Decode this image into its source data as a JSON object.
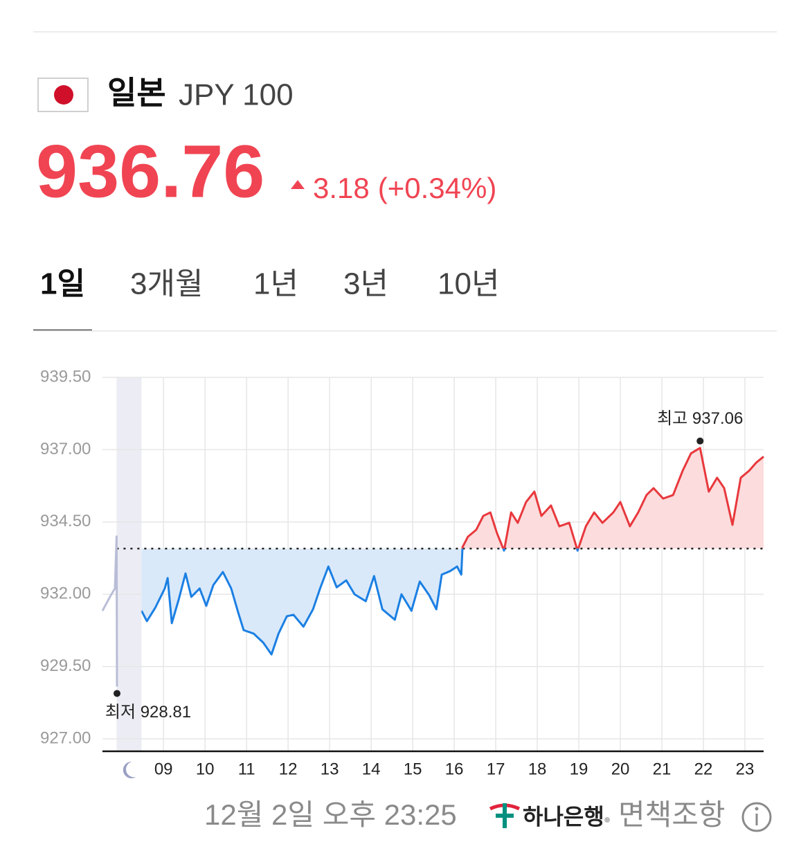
{
  "header": {
    "country": "일본",
    "currency": "JPY 100",
    "price": "936.76",
    "change": "3.18",
    "change_percent": "(+0.34%)"
  },
  "tabs": {
    "items": [
      "1일",
      "3개월",
      "1년",
      "3년",
      "10년"
    ],
    "active": 0
  },
  "chart_data": {
    "type": "line",
    "x": [
      7.53,
      7.73,
      7.83,
      7.87,
      7.88,
      null,
      8.47,
      8.6,
      8.8,
      9.03,
      9.1,
      9.2,
      9.37,
      9.53,
      9.67,
      9.87,
      10.03,
      10.2,
      10.43,
      10.63,
      10.8,
      10.93,
      11.17,
      11.4,
      11.6,
      11.77,
      11.97,
      12.13,
      12.37,
      12.6,
      12.77,
      12.97,
      13.17,
      13.4,
      13.6,
      13.87,
      14.07,
      14.27,
      14.57,
      14.73,
      14.97,
      15.17,
      15.4,
      15.57,
      15.7,
      15.9,
      16.07,
      16.17,
      16.2,
      16.33,
      16.53,
      16.7,
      16.87,
      17.03,
      17.2,
      17.37,
      17.53,
      17.73,
      17.93,
      18.1,
      18.33,
      18.53,
      18.77,
      18.97,
      19.17,
      19.37,
      19.57,
      19.83,
      20.0,
      20.23,
      20.43,
      20.63,
      20.8,
      21.03,
      21.27,
      21.5,
      21.7,
      21.92,
      22.13,
      22.33,
      22.5,
      22.7,
      22.9,
      23.1,
      23.27,
      23.45
    ],
    "values": [
      931.43,
      931.96,
      932.2,
      934.0,
      928.81,
      null,
      931.43,
      931.07,
      931.53,
      932.2,
      932.56,
      931.0,
      931.84,
      932.72,
      931.91,
      932.2,
      931.6,
      932.32,
      932.77,
      932.2,
      931.36,
      930.76,
      930.64,
      930.33,
      929.92,
      930.64,
      931.24,
      931.29,
      930.88,
      931.48,
      932.2,
      932.96,
      932.24,
      932.48,
      932.0,
      931.76,
      932.63,
      931.48,
      931.12,
      932.0,
      931.43,
      932.44,
      931.96,
      931.48,
      932.68,
      932.8,
      932.96,
      932.68,
      933.63,
      933.99,
      934.23,
      934.71,
      934.83,
      934.11,
      933.51,
      934.83,
      934.47,
      935.19,
      935.55,
      934.71,
      935.07,
      934.35,
      934.47,
      933.51,
      934.35,
      934.83,
      934.47,
      934.83,
      935.19,
      934.35,
      934.83,
      935.43,
      935.67,
      935.31,
      935.43,
      936.27,
      936.87,
      937.06,
      935.55,
      936.03,
      935.67,
      934.4,
      936.03,
      936.27,
      936.55,
      936.76
    ],
    "baseline": 933.58,
    "night_band": [
      7.87,
      8.47
    ],
    "xlim": [
      7.53,
      23.45
    ],
    "ylim": [
      926.57,
      939.5
    ],
    "xticks": [
      {
        "value": 9,
        "label": "09"
      },
      10,
      11,
      12,
      13,
      14,
      15,
      16,
      17,
      18,
      19,
      20,
      21,
      22,
      23
    ],
    "yticks": [
      {
        "value": 939.5,
        "label": "939.50"
      },
      {
        "value": 937,
        "label": "937.00"
      },
      {
        "value": 934.5,
        "label": "934.50"
      },
      {
        "value": 932,
        "label": "932.00"
      },
      {
        "value": 929.5,
        "label": "929.50"
      },
      {
        "value": 927,
        "label": "927.00"
      }
    ],
    "annotations": [
      {
        "text": "최고 937.06",
        "x": 21.92,
        "value": 937.06
      },
      {
        "text": "최저 928.81",
        "x": 7.88,
        "value": 928.81
      }
    ],
    "grid": true,
    "colors": {
      "up": "#e8383d",
      "down": "#1b7fe3",
      "night": "#b9bdd6",
      "up_fill": "#fcdcdc",
      "down_fill": "#d9e9fa",
      "band": "#ececf4"
    }
  },
  "footer": {
    "timestamp": "12월 2일 오후 23:25",
    "bank": "하나은행",
    "disclaimer": "면책조항"
  }
}
